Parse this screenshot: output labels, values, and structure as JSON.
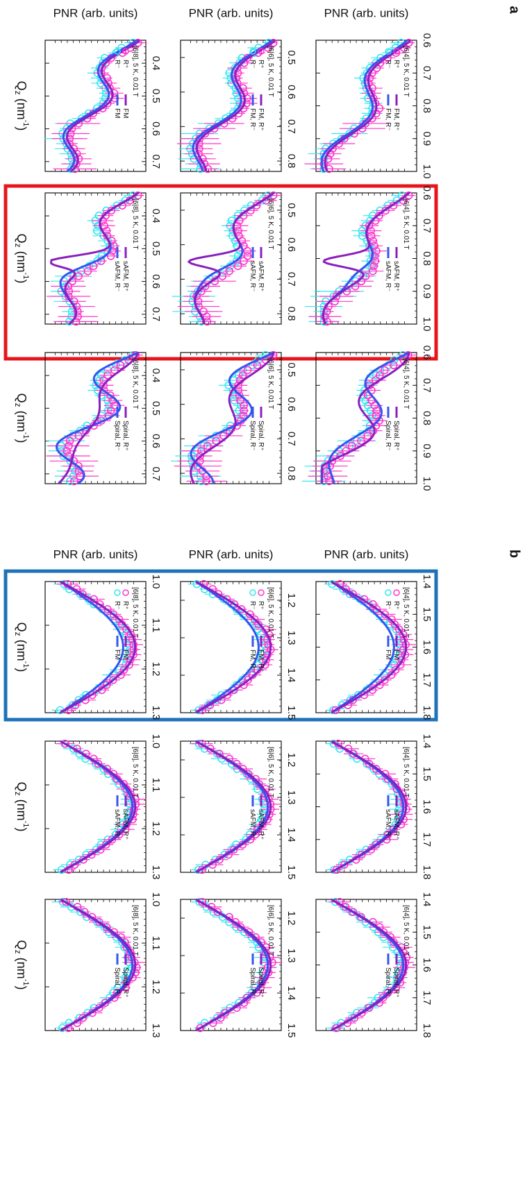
{
  "figure": {
    "panel_a_label": "a",
    "panel_b_label": "b",
    "ylabel": "PNR (arb. units)",
    "xlabel_main": "Q",
    "xlabel_sub": "z",
    "xlabel_unit_open": " (nm",
    "xlabel_unit_sup": "-1",
    "xlabel_unit_close": ")"
  },
  "highlights": {
    "panel_a_box_color": "#e8141c",
    "panel_b_box_color": "#1f72b8",
    "panel_a_box_column": "sAFM",
    "panel_b_box_column": "FM"
  },
  "colors": {
    "r_plus": "#ff33cc",
    "r_minus": "#33e6f0",
    "fit_plus": "#8a1fbf",
    "fit_minus": "#3355ee"
  },
  "chart_data": [
    {
      "panel": "a",
      "row": "[6|4]",
      "column": "FM",
      "type": "line",
      "legend_title": "[6|4], 5 K, 0.01 T",
      "series": [
        {
          "name": "R⁺"
        },
        {
          "name": "R⁻"
        },
        {
          "name": "FM, R⁺"
        },
        {
          "name": "FM, R⁻"
        }
      ],
      "xlim": [
        0.6,
        1.0
      ],
      "xticks": [
        "0.6",
        "0.7",
        "0.8",
        "0.9",
        "1.0"
      ]
    },
    {
      "panel": "a",
      "row": "[6|4]",
      "column": "sAFM",
      "type": "line",
      "legend_title": "[6|4], 5 K, 0.01 T",
      "series": [
        {
          "name": "sAFM, R⁺"
        },
        {
          "name": "sAFM, R⁻"
        }
      ],
      "xlim": [
        0.6,
        1.0
      ],
      "xticks": [
        "0.6",
        "0.7",
        "0.8",
        "0.9",
        "1.0"
      ]
    },
    {
      "panel": "a",
      "row": "[6|4]",
      "column": "Spiral",
      "type": "line",
      "legend_title": "[6|4], 5 K, 0.01 T",
      "series": [
        {
          "name": "Spiral, R⁺"
        },
        {
          "name": "Spiral, R⁻"
        }
      ],
      "xlim": [
        0.6,
        1.0
      ],
      "xticks": [
        "0.6",
        "0.7",
        "0.8",
        "0.9",
        "1.0"
      ]
    },
    {
      "panel": "a",
      "row": "[6|6]",
      "column": "FM",
      "type": "line",
      "legend_title": "[6|6], 5 K, 0.01 T",
      "series": [
        {
          "name": "R⁺"
        },
        {
          "name": "R⁻"
        },
        {
          "name": "FM, R⁺"
        },
        {
          "name": "FM, R⁻"
        }
      ],
      "xlim": [
        0.45,
        0.83
      ],
      "xticks": [
        "0.5",
        "0.6",
        "0.7",
        "0.8"
      ]
    },
    {
      "panel": "a",
      "row": "[6|6]",
      "column": "sAFM",
      "type": "line",
      "legend_title": "[6|6], 5 K, 0.01 T",
      "series": [
        {
          "name": "sAFM, R⁺"
        },
        {
          "name": "sAFM, R⁻"
        }
      ],
      "xlim": [
        0.45,
        0.83
      ],
      "xticks": [
        "0.5",
        "0.6",
        "0.7",
        "0.8"
      ]
    },
    {
      "panel": "a",
      "row": "[6|6]",
      "column": "Spiral",
      "type": "line",
      "legend_title": "[6|6], 5 K, 0.01 T",
      "series": [
        {
          "name": "Spiral, R⁺"
        },
        {
          "name": "Spiral, R⁻"
        }
      ],
      "xlim": [
        0.45,
        0.83
      ],
      "xticks": [
        "0.5",
        "0.6",
        "0.7",
        "0.8"
      ]
    },
    {
      "panel": "a",
      "row": "[6|8]",
      "column": "FM",
      "type": "line",
      "legend_title": "[6|8], 5 K, 0.01 T",
      "series": [
        {
          "name": "R⁺"
        },
        {
          "name": "R⁻"
        },
        {
          "name": "FM"
        },
        {
          "name": "FM"
        }
      ],
      "xlim": [
        0.33,
        0.73
      ],
      "xticks": [
        "0.4",
        "0.5",
        "0.6",
        "0.7"
      ]
    },
    {
      "panel": "a",
      "row": "[6|8]",
      "column": "sAFM",
      "type": "line",
      "legend_title": "[6|8], 5 K, 0.01 T",
      "series": [
        {
          "name": "sAFM, R⁺"
        },
        {
          "name": "sAFM, R⁻"
        }
      ],
      "xlim": [
        0.33,
        0.73
      ],
      "xticks": [
        "0.4",
        "0.5",
        "0.6",
        "0.7"
      ]
    },
    {
      "panel": "a",
      "row": "[6|8]",
      "column": "Spiral",
      "type": "line",
      "legend_title": "[6|8], 5 K, 0.01 T",
      "series": [
        {
          "name": "Spiral, R⁺"
        },
        {
          "name": "Spiral, R⁻"
        }
      ],
      "xlim": [
        0.33,
        0.73
      ],
      "xticks": [
        "0.4",
        "0.5",
        "0.6",
        "0.7"
      ]
    },
    {
      "panel": "b",
      "row": "[6|4]",
      "column": "FM",
      "type": "line",
      "legend_title": "[6|4], 5 K, 0.01 T",
      "series": [
        {
          "name": "R⁺"
        },
        {
          "name": "R⁻"
        },
        {
          "name": "FM"
        },
        {
          "name": "FM"
        }
      ],
      "xlim": [
        1.4,
        1.8
      ],
      "xticks": [
        "1.4",
        "1.5",
        "1.6",
        "1.7",
        "1.8"
      ]
    },
    {
      "panel": "b",
      "row": "[6|4]",
      "column": "sAFM",
      "type": "line",
      "legend_title": "[6|4], 5 K, 0.01 T",
      "series": [
        {
          "name": "sAFM, R⁺"
        },
        {
          "name": "sAFM, R⁻"
        }
      ],
      "xlim": [
        1.4,
        1.8
      ],
      "xticks": [
        "1.4",
        "1.5",
        "1.6",
        "1.7",
        "1.8"
      ]
    },
    {
      "panel": "b",
      "row": "[6|4]",
      "column": "Spiral",
      "type": "line",
      "legend_title": "[6|4], 5 K, 0.01 T",
      "series": [
        {
          "name": "Spiral, R⁺"
        },
        {
          "name": "Spiral, R⁻"
        }
      ],
      "xlim": [
        1.4,
        1.8
      ],
      "xticks": [
        "1.4",
        "1.5",
        "1.6",
        "1.7",
        "1.8"
      ]
    },
    {
      "panel": "b",
      "row": "[6|6]",
      "column": "FM",
      "type": "line",
      "legend_title": "[6|6], 5 K, 0.01 T",
      "series": [
        {
          "name": "R⁺"
        },
        {
          "name": "R⁻"
        },
        {
          "name": "FM, R⁺"
        },
        {
          "name": "FM, R⁻"
        }
      ],
      "xlim": [
        1.15,
        1.5
      ],
      "xticks": [
        "1.2",
        "1.3",
        "1.4",
        "1.5"
      ]
    },
    {
      "panel": "b",
      "row": "[6|6]",
      "column": "sAFM",
      "type": "line",
      "legend_title": "[6|6], 5 K, 0.01 T",
      "series": [
        {
          "name": "sAFM, R⁺"
        },
        {
          "name": "sAFM, R⁻"
        }
      ],
      "xlim": [
        1.15,
        1.5
      ],
      "xticks": [
        "1.2",
        "1.3",
        "1.4",
        "1.5"
      ]
    },
    {
      "panel": "b",
      "row": "[6|6]",
      "column": "Spiral",
      "type": "line",
      "legend_title": "[6|6], 5 K, 0.01 T",
      "series": [
        {
          "name": "Spiral, R⁺"
        },
        {
          "name": "Spiral, R⁻"
        }
      ],
      "xlim": [
        1.15,
        1.5
      ],
      "xticks": [
        "1.2",
        "1.3",
        "1.4",
        "1.5"
      ]
    },
    {
      "panel": "b",
      "row": "[6|8]",
      "column": "FM",
      "type": "line",
      "legend_title": "[6|8], 5 K, 0.01 T",
      "series": [
        {
          "name": "R⁺"
        },
        {
          "name": "R⁻"
        },
        {
          "name": "FM"
        },
        {
          "name": "FM"
        }
      ],
      "xlim": [
        1.0,
        1.3
      ],
      "xticks": [
        "1.0",
        "1.1",
        "1.2",
        "1.3"
      ]
    },
    {
      "panel": "b",
      "row": "[6|8]",
      "column": "sAFM",
      "type": "line",
      "legend_title": "[6|8], 5 K, 0.01 T",
      "series": [
        {
          "name": "sAFM, R⁺"
        },
        {
          "name": "sAFM, R⁻"
        }
      ],
      "xlim": [
        1.0,
        1.3
      ],
      "xticks": [
        "1.0",
        "1.1",
        "1.2",
        "1.3"
      ]
    },
    {
      "panel": "b",
      "row": "[6|8]",
      "column": "Spiral",
      "type": "line",
      "legend_title": "[6|8], 5 K, 0.01 T",
      "series": [
        {
          "name": "Spiral, R⁺"
        },
        {
          "name": "Spiral, R⁻"
        }
      ],
      "xlim": [
        1.0,
        1.3
      ],
      "xticks": [
        "1.0",
        "1.1",
        "1.2",
        "1.3"
      ]
    }
  ]
}
